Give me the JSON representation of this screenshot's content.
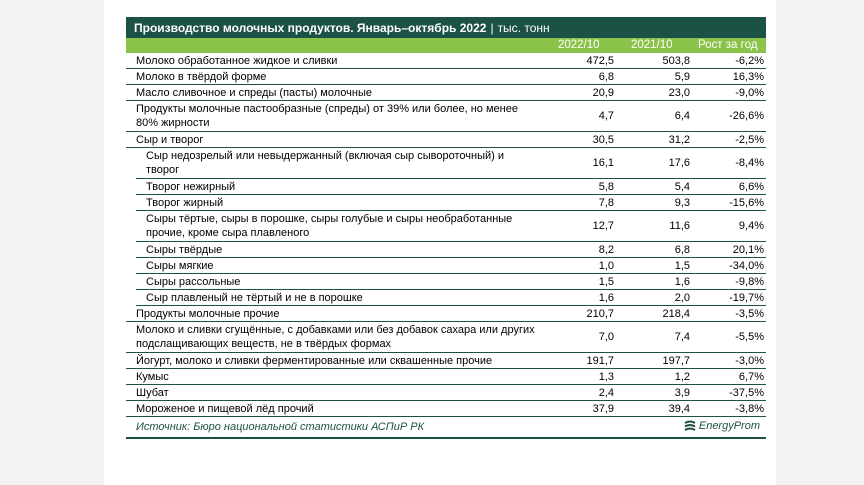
{
  "title": "Производство молочных продуктов. Январь–октябрь 2022",
  "unit_sep": "|",
  "unit": "тыс. тонн",
  "columns": [
    "2022/10",
    "2021/10",
    "Рост за год"
  ],
  "rows": [
    {
      "name": "Молоко обработанное жидкое и сливки",
      "v1": "472,5",
      "v2": "503,8",
      "v3": "-6,2%"
    },
    {
      "name": "Молоко в твёрдой форме",
      "v1": "6,8",
      "v2": "5,9",
      "v3": "16,3%"
    },
    {
      "name": "Масло сливочное и спреды (пасты) молочные",
      "v1": "20,9",
      "v2": "23,0",
      "v3": "-9,0%"
    },
    {
      "name": "Продукты молочные пастообразные (спреды) от 39% или более, но менее 80% жирности",
      "v1": "4,7",
      "v2": "6,4",
      "v3": "-26,6%"
    },
    {
      "name": "Сыр и творог",
      "v1": "30,5",
      "v2": "31,2",
      "v3": "-2,5%"
    },
    {
      "name": "Сыр недозрелый или невыдержанный (включая сыр сывороточный) и творог",
      "v1": "16,1",
      "v2": "17,6",
      "v3": "-8,4%"
    },
    {
      "name": "Творог нежирный",
      "v1": "5,8",
      "v2": "5,4",
      "v3": "6,6%"
    },
    {
      "name": "Творог жирный",
      "v1": "7,8",
      "v2": "9,3",
      "v3": "-15,6%"
    },
    {
      "name": "Сыры тёртые, сыры в порошке, сыры голубые и сыры необработанные прочие, кроме сыра плавленого",
      "v1": "12,7",
      "v2": "11,6",
      "v3": "9,4%"
    },
    {
      "name": "Сыры твёрдые",
      "v1": "8,2",
      "v2": "6,8",
      "v3": "20,1%"
    },
    {
      "name": "Сыры мягкие",
      "v1": "1,0",
      "v2": "1,5",
      "v3": "-34,0%"
    },
    {
      "name": "Сыры рассольные",
      "v1": "1,5",
      "v2": "1,6",
      "v3": "-9,8%"
    },
    {
      "name": "Сыр плавленый не тёртый и не в порошке",
      "v1": "1,6",
      "v2": "2,0",
      "v3": "-19,7%"
    },
    {
      "name": "Продукты молочные прочие",
      "v1": "210,7",
      "v2": "218,4",
      "v3": "-3,5%"
    },
    {
      "name": "Молоко и сливки сгущённые, с добавками или без добавок сахара или других подслащивающих веществ, не в твёрдых формах",
      "v1": "7,0",
      "v2": "7,4",
      "v3": "-5,5%"
    },
    {
      "name": "Йогурт, молоко и сливки ферментированные или сквашенные прочие",
      "v1": "191,7",
      "v2": "197,7",
      "v3": "-3,0%"
    },
    {
      "name": "Кумыс",
      "v1": "1,3",
      "v2": "1,2",
      "v3": "6,7%"
    },
    {
      "name": "Шубат",
      "v1": "2,4",
      "v2": "3,9",
      "v3": "-37,5%"
    },
    {
      "name": "Мороженое и пищевой лёд прочий",
      "v1": "37,9",
      "v2": "39,4",
      "v3": "-3,8%"
    }
  ],
  "source": "Источник: Бюро национальной статистики АСПиР РК",
  "logo_text": "EnergyProm",
  "colors": {
    "title_bg": "#1c5146",
    "header_bg": "#8bc34a",
    "rule": "#1c5146"
  }
}
